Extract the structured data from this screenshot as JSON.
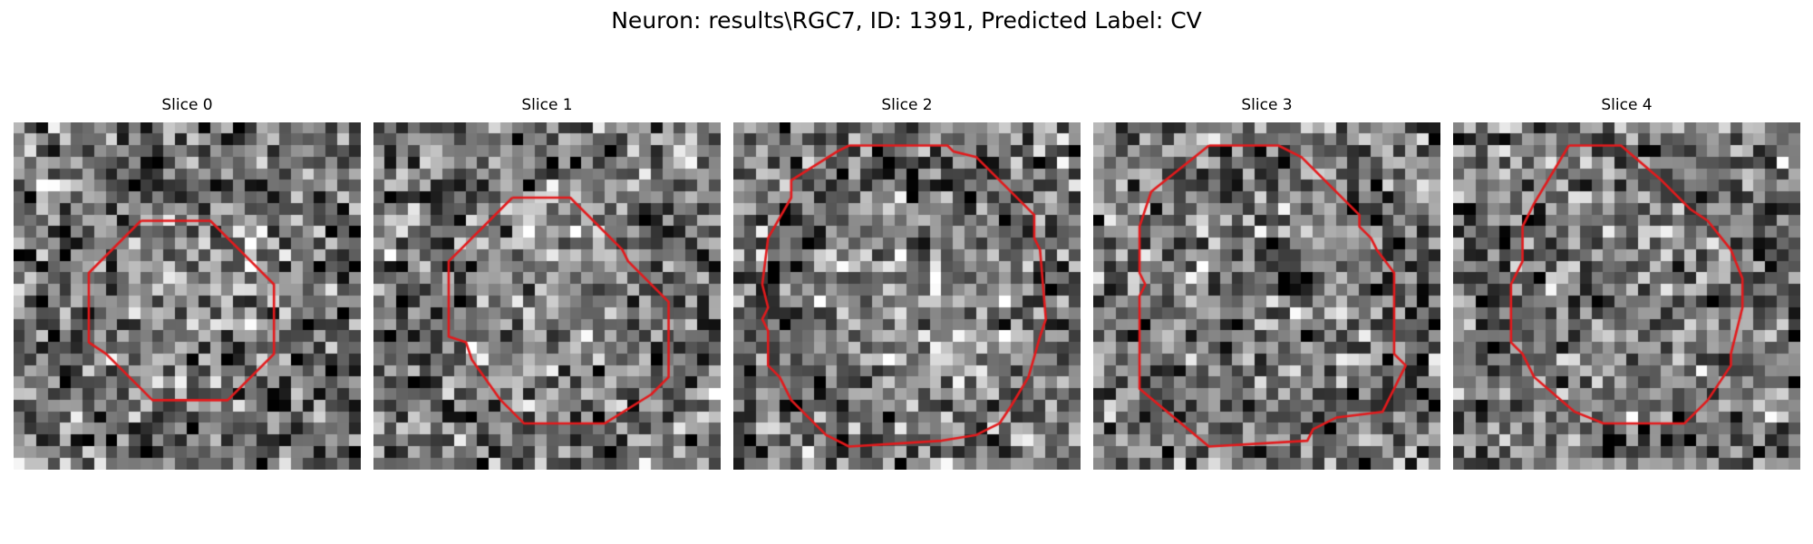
{
  "figure": {
    "title": "Neuron: results\\RGC7, ID: 1391, Predicted Label: CV"
  },
  "colors": {
    "contour": "#e31a1c",
    "background": "#ffffff"
  },
  "image_grid": {
    "rows": 30,
    "cols": 30,
    "colormap": "gray"
  },
  "slices": [
    {
      "title": "Slice 0",
      "contour": [
        [
          11.0,
          8.5
        ],
        [
          17.0,
          8.5
        ],
        [
          20.5,
          12.0
        ],
        [
          22.5,
          14.0
        ],
        [
          22.5,
          20.0
        ],
        [
          18.5,
          24.0
        ],
        [
          12.0,
          24.0
        ],
        [
          8.0,
          20.0
        ],
        [
          6.5,
          19.0
        ],
        [
          6.5,
          13.0
        ],
        [
          11.0,
          8.5
        ]
      ]
    },
    {
      "title": "Slice 1",
      "contour": [
        [
          12.0,
          6.5
        ],
        [
          17.0,
          6.5
        ],
        [
          20.0,
          9.5
        ],
        [
          21.5,
          11.0
        ],
        [
          22.0,
          12.0
        ],
        [
          25.5,
          15.5
        ],
        [
          25.5,
          22.0
        ],
        [
          24.0,
          23.5
        ],
        [
          20.0,
          26.0
        ],
        [
          13.0,
          26.0
        ],
        [
          12.0,
          25.0
        ],
        [
          11.0,
          24.0
        ],
        [
          8.5,
          20.5
        ],
        [
          8.0,
          19.0
        ],
        [
          6.5,
          18.5
        ],
        [
          6.5,
          12.0
        ],
        [
          7.0,
          11.5
        ],
        [
          12.0,
          6.5
        ]
      ]
    },
    {
      "title": "Slice 2",
      "contour": [
        [
          10.0,
          2.0
        ],
        [
          18.5,
          2.0
        ],
        [
          19.0,
          2.5
        ],
        [
          21.0,
          3.0
        ],
        [
          25.0,
          7.0
        ],
        [
          26.0,
          8.0
        ],
        [
          26.0,
          10.0
        ],
        [
          26.5,
          11.0
        ],
        [
          27.0,
          17.0
        ],
        [
          26.5,
          18.5
        ],
        [
          25.5,
          22.0
        ],
        [
          24.0,
          24.5
        ],
        [
          23.0,
          26.0
        ],
        [
          21.0,
          27.0
        ],
        [
          18.0,
          27.5
        ],
        [
          10.0,
          28.0
        ],
        [
          8.0,
          27.0
        ],
        [
          5.0,
          24.0
        ],
        [
          4.0,
          22.0
        ],
        [
          3.0,
          21.0
        ],
        [
          3.0,
          18.0
        ],
        [
          2.5,
          17.0
        ],
        [
          3.0,
          16.0
        ],
        [
          2.5,
          14.0
        ],
        [
          3.0,
          10.0
        ],
        [
          5.0,
          6.5
        ],
        [
          5.0,
          5.0
        ],
        [
          9.0,
          2.5
        ],
        [
          10.0,
          2.0
        ]
      ]
    },
    {
      "title": "Slice 3",
      "contour": [
        [
          10.0,
          2.0
        ],
        [
          16.0,
          2.0
        ],
        [
          18.0,
          3.0
        ],
        [
          22.0,
          7.0
        ],
        [
          23.0,
          8.0
        ],
        [
          23.0,
          9.0
        ],
        [
          24.0,
          10.0
        ],
        [
          24.5,
          11.0
        ],
        [
          26.0,
          13.0
        ],
        [
          26.0,
          20.0
        ],
        [
          27.0,
          21.0
        ],
        [
          26.0,
          23.0
        ],
        [
          25.0,
          25.0
        ],
        [
          21.0,
          25.5
        ],
        [
          19.0,
          26.5
        ],
        [
          18.5,
          27.5
        ],
        [
          10.0,
          28.0
        ],
        [
          4.0,
          23.0
        ],
        [
          4.0,
          15.0
        ],
        [
          4.5,
          14.0
        ],
        [
          4.0,
          13.0
        ],
        [
          4.0,
          9.0
        ],
        [
          5.0,
          6.0
        ],
        [
          10.0,
          2.0
        ]
      ]
    },
    {
      "title": "Slice 4",
      "contour": [
        [
          10.0,
          2.0
        ],
        [
          14.5,
          2.0
        ],
        [
          18.0,
          5.0
        ],
        [
          20.5,
          7.5
        ],
        [
          22.0,
          8.5
        ],
        [
          24.0,
          11.0
        ],
        [
          25.0,
          13.5
        ],
        [
          25.0,
          16.0
        ],
        [
          24.0,
          20.0
        ],
        [
          24.0,
          21.0
        ],
        [
          22.0,
          24.0
        ],
        [
          20.0,
          26.0
        ],
        [
          13.0,
          26.0
        ],
        [
          10.5,
          25.0
        ],
        [
          7.0,
          22.0
        ],
        [
          6.0,
          20.0
        ],
        [
          5.0,
          19.0
        ],
        [
          5.0,
          14.0
        ],
        [
          6.0,
          12.0
        ],
        [
          6.0,
          9.0
        ],
        [
          7.0,
          7.0
        ],
        [
          10.0,
          2.0
        ]
      ]
    }
  ]
}
